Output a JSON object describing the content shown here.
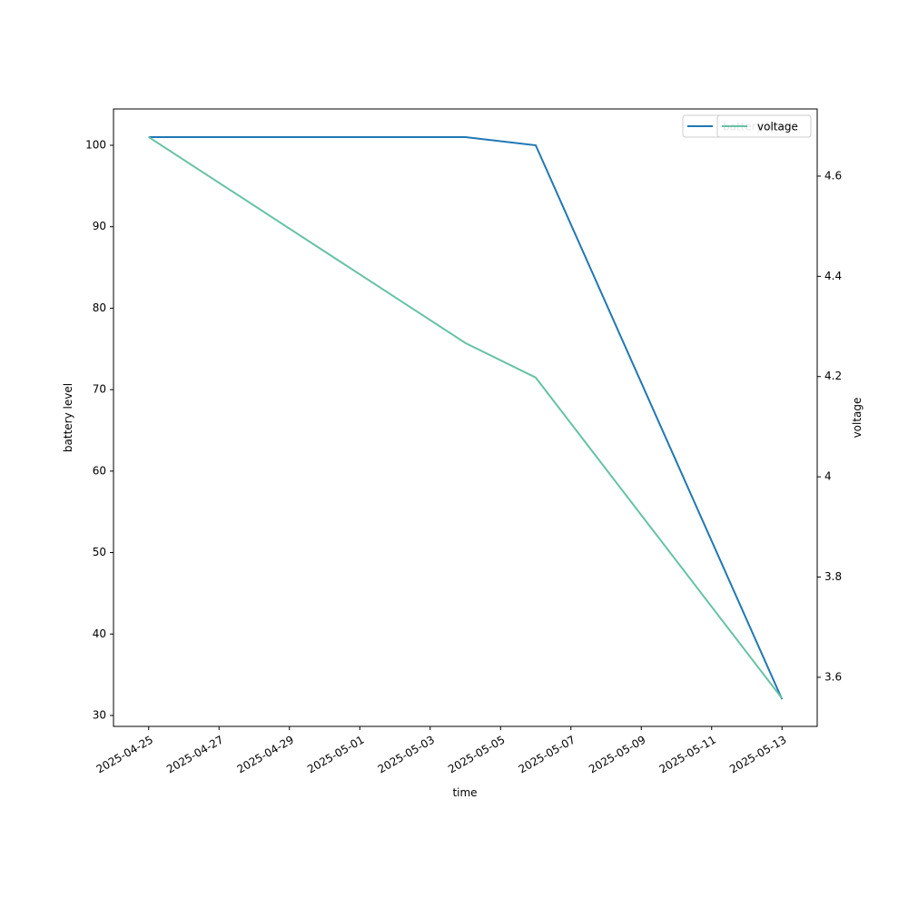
{
  "chart_data": {
    "type": "line",
    "x_label": "time",
    "y_label": "battery level",
    "y2_label": "voltage",
    "x": [
      "2025-04-25",
      "2025-05-04",
      "2025-05-06",
      "2025-05-13"
    ],
    "series": [
      {
        "name": "battery level",
        "color": "#1f77b4",
        "values": [
          101,
          101,
          100,
          32
        ]
      },
      {
        "name": "voltage",
        "color": "#66c2a5",
        "axis": "y2",
        "values": [
          4.678,
          4.267,
          4.198,
          3.558
        ]
      }
    ],
    "xlim": [
      "2025-04-24",
      "2025-05-14"
    ],
    "xticks": [
      "2025-04-25",
      "2025-04-27",
      "2025-04-29",
      "2025-05-01",
      "2025-05-03",
      "2025-05-05",
      "2025-05-07",
      "2025-05-09",
      "2025-05-11",
      "2025-05-13"
    ],
    "ylim": [
      28.66,
      104.46
    ],
    "yticks": [
      30,
      40,
      50,
      60,
      70,
      80,
      90,
      100
    ],
    "y2lim": [
      3.502,
      4.734
    ],
    "y2ticks": [
      3.6,
      3.8,
      4.0,
      4.2,
      4.4,
      4.6
    ],
    "legend": "upper right"
  }
}
